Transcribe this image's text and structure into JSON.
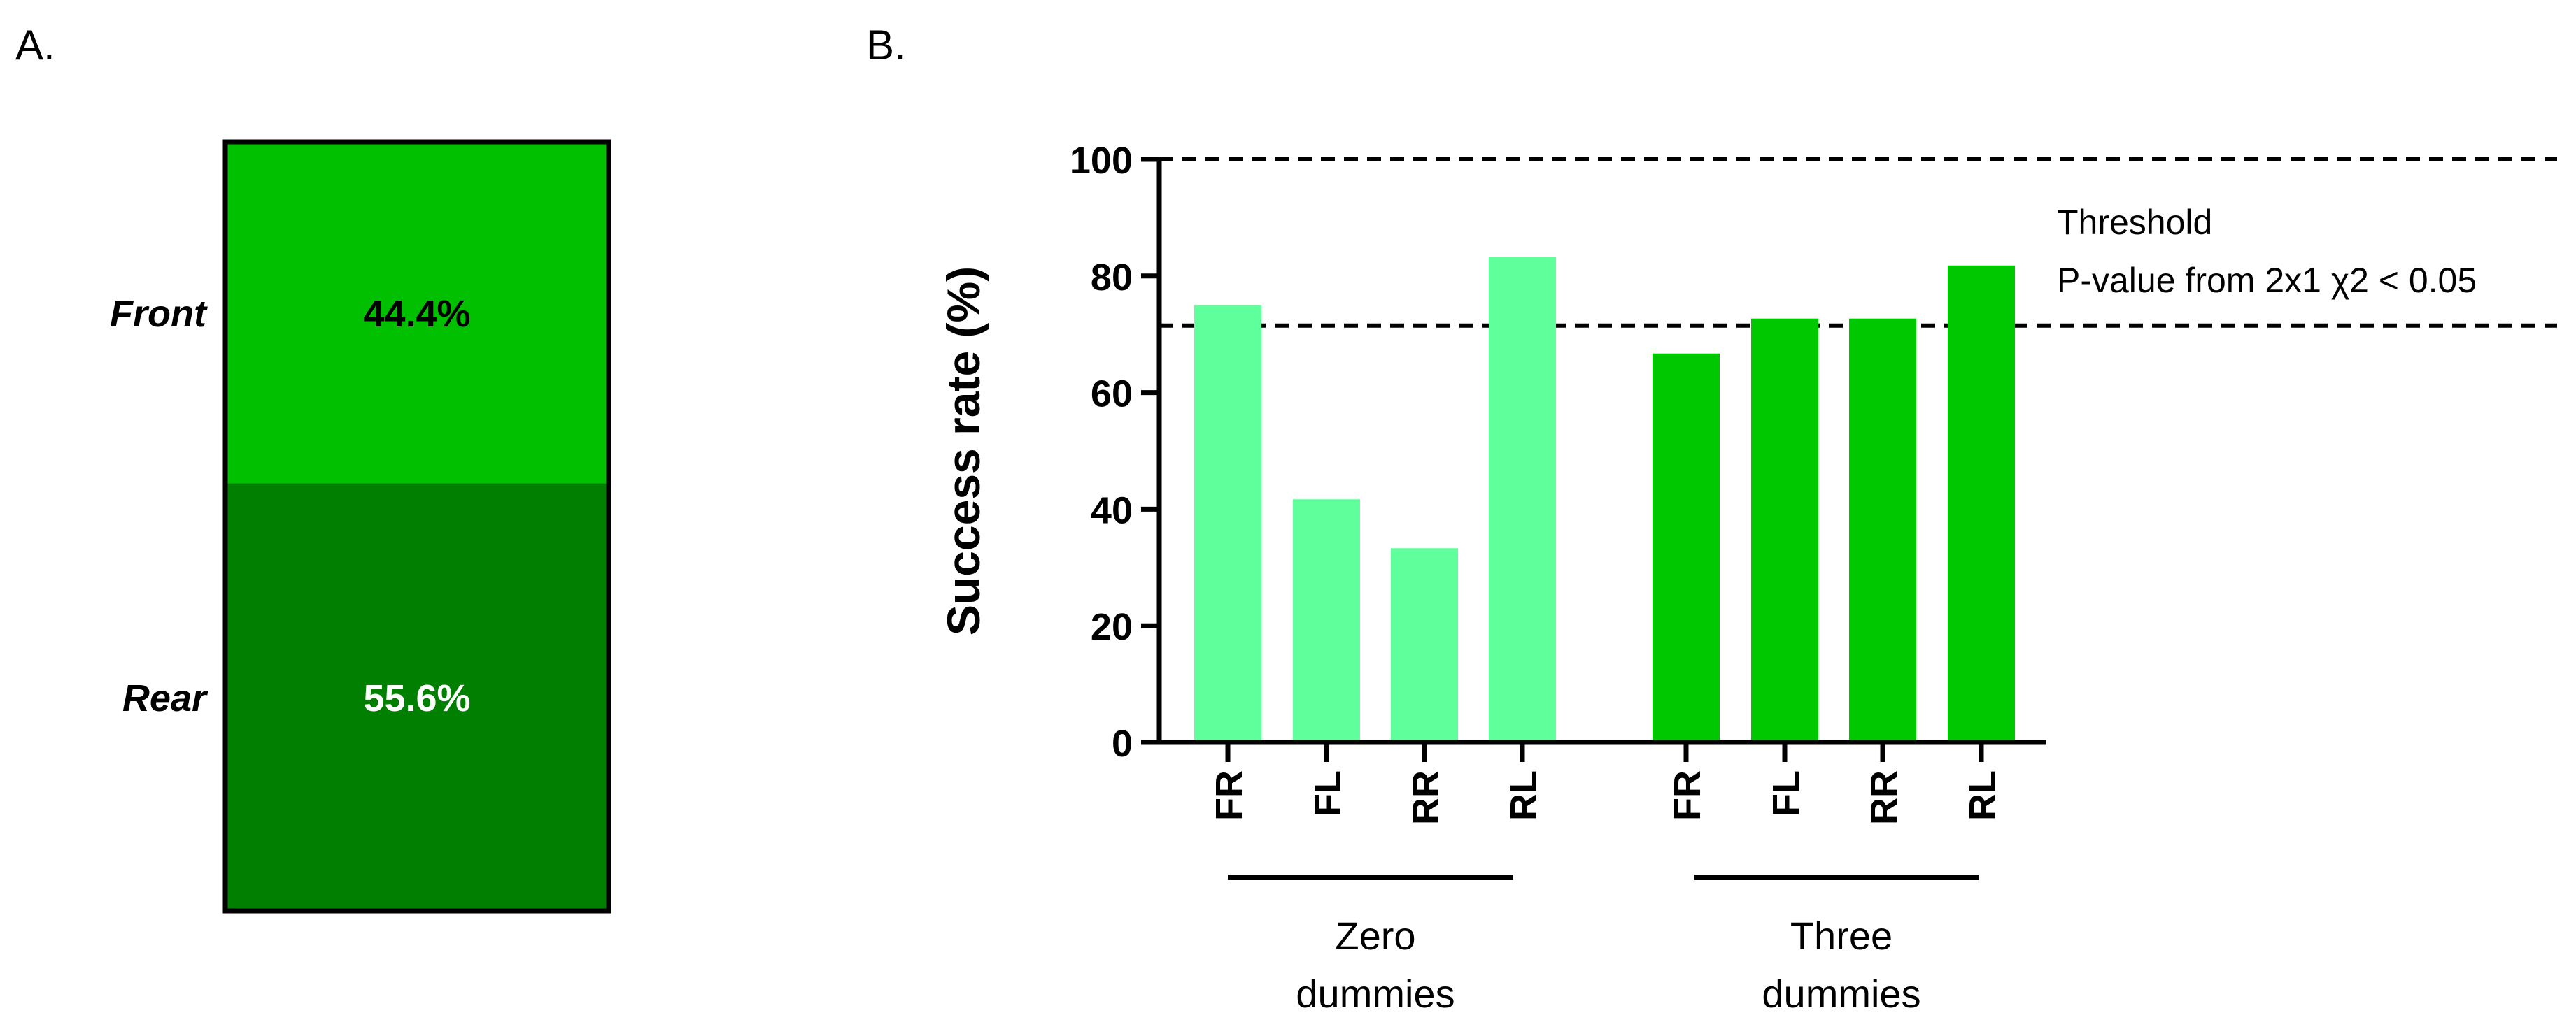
{
  "panels": {
    "a_label": "A.",
    "b_label": "B."
  },
  "chart_data": [
    {
      "type": "stacked-bar",
      "panel": "A",
      "segments": [
        {
          "name": "Front",
          "value": 44.4,
          "label": "44.4%",
          "color": "#00c000",
          "text_color": "#000000"
        },
        {
          "name": "Rear",
          "value": 55.6,
          "label": "55.6%",
          "color": "#007f00",
          "text_color": "#ffffff"
        }
      ]
    },
    {
      "type": "bar",
      "panel": "B",
      "ylabel": "Success rate (%)",
      "ylim": [
        0,
        100
      ],
      "yticks": [
        "0",
        "20",
        "40",
        "60",
        "80",
        "100"
      ],
      "groups": [
        {
          "name": "Zero dummies",
          "label_line1": "Zero",
          "label_line2": "dummies",
          "color": "#5fff9b",
          "categories": [
            "FR",
            "FL",
            "RR",
            "RL"
          ],
          "values": [
            75,
            41.7,
            33.3,
            83.3
          ]
        },
        {
          "name": "Three dummies",
          "label_line1": "Three",
          "label_line2": "dummies",
          "color": "#00c800",
          "categories": [
            "FR",
            "FL",
            "RR",
            "RL"
          ],
          "values": [
            66.7,
            72.7,
            72.7,
            81.8
          ]
        }
      ],
      "reference_lines": [
        {
          "value": 100,
          "style": "dashed"
        },
        {
          "value": 71.5,
          "style": "dashed"
        }
      ],
      "annotation": {
        "line1": "Threshold",
        "line2": "P-value from 2x1 χ2 < 0.05"
      }
    }
  ]
}
